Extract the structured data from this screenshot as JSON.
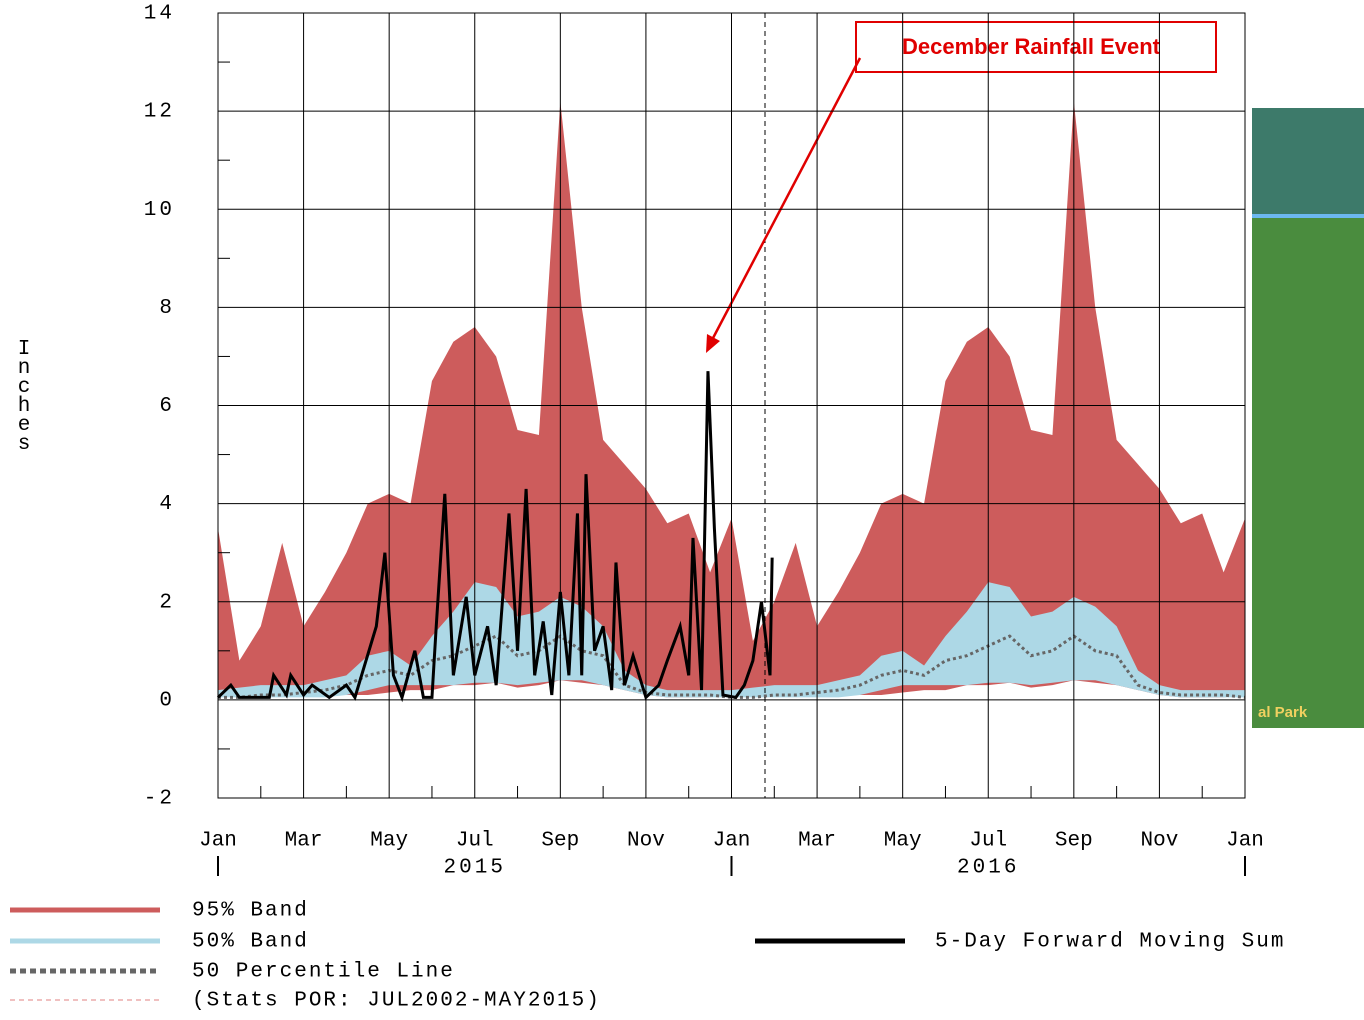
{
  "chart_data": {
    "type": "band",
    "annotation": "December Rainfall Event",
    "ylabel": "Inches",
    "note": "(Stats POR: JUL2002-MAY2015)",
    "map_label": "al Park",
    "xlim": [
      0,
      24
    ],
    "ylim": [
      -2,
      14
    ],
    "yticks": [
      -2,
      0,
      2,
      4,
      6,
      8,
      10,
      12,
      14
    ],
    "xticks": [
      {
        "value": 0,
        "label": "Jan"
      },
      {
        "value": 2,
        "label": "Mar"
      },
      {
        "value": 4,
        "label": "May"
      },
      {
        "value": 6,
        "label": "Jul"
      },
      {
        "value": 8,
        "label": "Sep"
      },
      {
        "value": 10,
        "label": "Nov"
      },
      {
        "value": 12,
        "label": "Jan"
      },
      {
        "value": 14,
        "label": "Mar"
      },
      {
        "value": 16,
        "label": "May"
      },
      {
        "value": 18,
        "label": "Jul"
      },
      {
        "value": 20,
        "label": "Sep"
      },
      {
        "value": 22,
        "label": "Nov"
      },
      {
        "value": 24,
        "label": "Jan"
      }
    ],
    "year_labels": [
      {
        "value": 6,
        "label": "2015"
      },
      {
        "value": 18,
        "label": "2016"
      }
    ],
    "grid": true,
    "x": [
      0,
      0.5,
      1,
      1.5,
      2,
      2.5,
      3,
      3.5,
      4,
      4.5,
      5,
      5.5,
      6,
      6.5,
      7,
      7.5,
      8,
      8.5,
      9,
      9.5,
      10,
      10.5,
      11,
      11.5,
      12,
      12.5,
      13,
      13.5,
      14,
      14.5,
      15,
      15.5,
      16,
      16.5,
      17,
      17.5,
      18,
      18.5,
      19,
      19.5,
      20,
      20.5,
      21,
      21.5,
      22,
      22.5,
      23,
      23.5,
      24
    ],
    "series": [
      {
        "name": "95% Band",
        "color": "#cd5c5c",
        "kind": "band",
        "upper": [
          3.5,
          0.8,
          1.5,
          3.2,
          1.5,
          2.2,
          3.0,
          4.0,
          4.2,
          4.0,
          6.5,
          7.3,
          7.6,
          7.0,
          5.5,
          5.4,
          12.2,
          8.0,
          5.3,
          4.8,
          4.3,
          3.6,
          3.8,
          2.6,
          3.7,
          1.2,
          2.0,
          3.2,
          1.5,
          2.2,
          3.0,
          4.0,
          4.2,
          4.0,
          6.5,
          7.3,
          7.6,
          7.0,
          5.5,
          5.4,
          12.2,
          8.0,
          5.3,
          4.8,
          4.3,
          3.6,
          3.8,
          2.6,
          3.7
        ],
        "lower": [
          0.1,
          0.1,
          0.1,
          0.1,
          0.1,
          0.1,
          0.1,
          0.1,
          0.15,
          0.2,
          0.2,
          0.3,
          0.3,
          0.35,
          0.25,
          0.3,
          0.4,
          0.35,
          0.3,
          0.2,
          0.1,
          0.05,
          0.05,
          0.05,
          0.1,
          0.1,
          0.1,
          0.1,
          0.1,
          0.1,
          0.1,
          0.1,
          0.15,
          0.2,
          0.2,
          0.3,
          0.3,
          0.35,
          0.25,
          0.3,
          0.4,
          0.35,
          0.3,
          0.2,
          0.1,
          0.05,
          0.05,
          0.05,
          0.1
        ]
      },
      {
        "name": "50% Band",
        "color": "#add8e6",
        "kind": "band",
        "upper": [
          0.2,
          0.25,
          0.3,
          0.3,
          0.3,
          0.4,
          0.5,
          0.9,
          1.0,
          0.7,
          1.3,
          1.8,
          2.4,
          2.3,
          1.7,
          1.8,
          2.1,
          1.9,
          1.5,
          0.6,
          0.3,
          0.2,
          0.2,
          0.2,
          0.2,
          0.25,
          0.3,
          0.3,
          0.3,
          0.4,
          0.5,
          0.9,
          1.0,
          0.7,
          1.3,
          1.8,
          2.4,
          2.3,
          1.7,
          1.8,
          2.1,
          1.9,
          1.5,
          0.6,
          0.3,
          0.2,
          0.2,
          0.2,
          0.2
        ],
        "lower": [
          0.05,
          0.05,
          0.05,
          0.05,
          0.05,
          0.05,
          0.1,
          0.2,
          0.3,
          0.3,
          0.3,
          0.3,
          0.35,
          0.35,
          0.3,
          0.35,
          0.4,
          0.4,
          0.3,
          0.2,
          0.1,
          0.05,
          0.05,
          0.05,
          0.05,
          0.05,
          0.05,
          0.05,
          0.05,
          0.05,
          0.1,
          0.2,
          0.3,
          0.3,
          0.3,
          0.3,
          0.35,
          0.35,
          0.3,
          0.35,
          0.4,
          0.4,
          0.3,
          0.2,
          0.1,
          0.05,
          0.05,
          0.05,
          0.05
        ]
      },
      {
        "name": "50 Percentile Line",
        "color": "#666666",
        "kind": "dotted",
        "values": [
          0.05,
          0.05,
          0.1,
          0.1,
          0.15,
          0.2,
          0.3,
          0.5,
          0.6,
          0.5,
          0.8,
          0.9,
          1.1,
          1.3,
          0.9,
          1.0,
          1.3,
          1.0,
          0.9,
          0.3,
          0.15,
          0.1,
          0.1,
          0.1,
          0.05,
          0.05,
          0.1,
          0.1,
          0.15,
          0.2,
          0.3,
          0.5,
          0.6,
          0.5,
          0.8,
          0.9,
          1.1,
          1.3,
          0.9,
          1.0,
          1.3,
          1.0,
          0.9,
          0.3,
          0.15,
          0.1,
          0.1,
          0.1,
          0.05
        ]
      },
      {
        "name": "5-Day Forward Moving Sum",
        "color": "#000000",
        "kind": "line",
        "x": [
          0,
          0.3,
          0.5,
          1.2,
          1.3,
          1.6,
          1.7,
          2.0,
          2.2,
          2.6,
          3.0,
          3.2,
          3.7,
          3.9,
          4.1,
          4.3,
          4.6,
          4.8,
          5.0,
          5.1,
          5.3,
          5.5,
          5.8,
          6.0,
          6.3,
          6.5,
          6.8,
          7.0,
          7.2,
          7.4,
          7.6,
          7.8,
          8.0,
          8.2,
          8.4,
          8.5,
          8.6,
          8.8,
          9.0,
          9.2,
          9.3,
          9.5,
          9.7,
          10.0,
          10.3,
          10.5,
          10.8,
          11.0,
          11.1,
          11.3,
          11.45,
          11.6,
          11.8,
          12.1,
          12.3,
          12.5,
          12.7,
          12.9,
          12.95
        ],
        "values": [
          0.05,
          0.3,
          0.05,
          0.05,
          0.5,
          0.1,
          0.5,
          0.1,
          0.3,
          0.05,
          0.3,
          0.05,
          1.5,
          3.0,
          0.5,
          0.05,
          1.0,
          0.05,
          0.05,
          1.5,
          4.2,
          0.5,
          2.1,
          0.5,
          1.5,
          0.3,
          3.8,
          1.0,
          4.3,
          0.5,
          1.6,
          0.1,
          2.2,
          0.5,
          3.8,
          0.5,
          4.6,
          1.0,
          1.5,
          0.2,
          2.8,
          0.3,
          0.9,
          0.05,
          0.3,
          0.8,
          1.5,
          0.5,
          3.3,
          0.2,
          6.7,
          3.5,
          0.1,
          0.05,
          0.3,
          0.8,
          2.0,
          0.5,
          2.9
        ]
      }
    ]
  }
}
